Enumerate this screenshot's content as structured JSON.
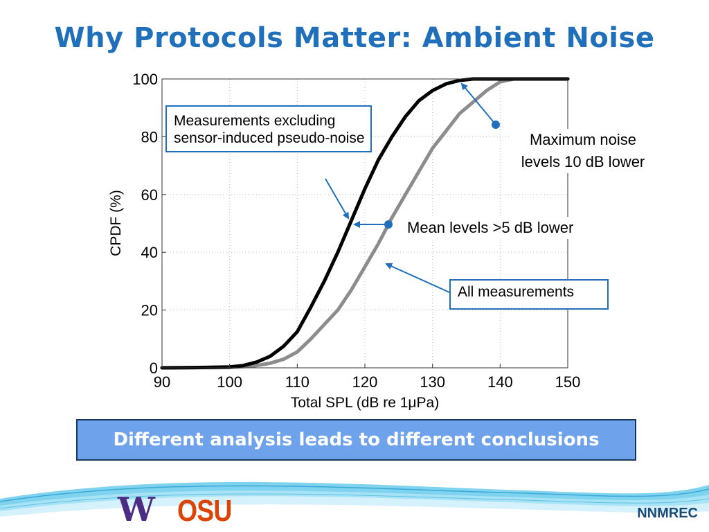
{
  "slide": {
    "title": "Why Protocols Matter: Ambient Noise",
    "banner": "Different analysis leads to different conclusions",
    "org": "NNMREC"
  },
  "logos": {
    "uw": "W",
    "osu": "OSU"
  },
  "annotations": {
    "measurements_label": "Measurements excluding sensor-induced pseudo-noise",
    "max_noise_line1": "Maximum noise",
    "max_noise_line2": "levels 10 dB lower",
    "mean_levels": "Mean levels >5 dB lower",
    "all_measurements": "All measurements"
  },
  "colors": {
    "title": "#1f6fba",
    "accent": "#1f6fba",
    "banner": "#6ea3ec",
    "uw_purple": "#4b2e83",
    "osu_orange": "#dc4405"
  },
  "chart_data": {
    "type": "line",
    "xlabel": "Total SPL (dB re 1μPa)",
    "ylabel": "CPDF (%)",
    "xlim": [
      90,
      150
    ],
    "ylim": [
      0,
      100
    ],
    "xticks": [
      90,
      100,
      110,
      120,
      130,
      140,
      150
    ],
    "yticks": [
      0,
      20,
      40,
      60,
      80,
      100
    ],
    "grid": true,
    "series": [
      {
        "color": "#000000",
        "x": [
          90,
          95,
          100,
          102,
          104,
          106,
          108,
          110,
          112,
          114,
          116,
          118,
          120,
          122,
          124,
          126,
          128,
          130,
          132,
          134,
          136,
          138,
          140,
          150
        ],
        "y": [
          0,
          0.1,
          0.3,
          0.8,
          2,
          4,
          7.5,
          12.5,
          21,
          30,
          40,
          51,
          62,
          72,
          80,
          87,
          92.5,
          96,
          98.3,
          99.5,
          100,
          100,
          100,
          100
        ]
      },
      {
        "color": "#8c8c8c",
        "x": [
          90,
          100,
          102,
          104,
          106,
          108,
          110,
          112,
          114,
          116,
          118,
          120,
          122,
          124,
          126,
          128,
          130,
          132,
          134,
          136,
          138,
          140,
          142,
          150
        ],
        "y": [
          0,
          0.1,
          0.4,
          0.8,
          1.6,
          3,
          5.5,
          10,
          15,
          20,
          27,
          35,
          43,
          52,
          60,
          68,
          76,
          82,
          88,
          92,
          96,
          99,
          100,
          100
        ]
      }
    ]
  }
}
